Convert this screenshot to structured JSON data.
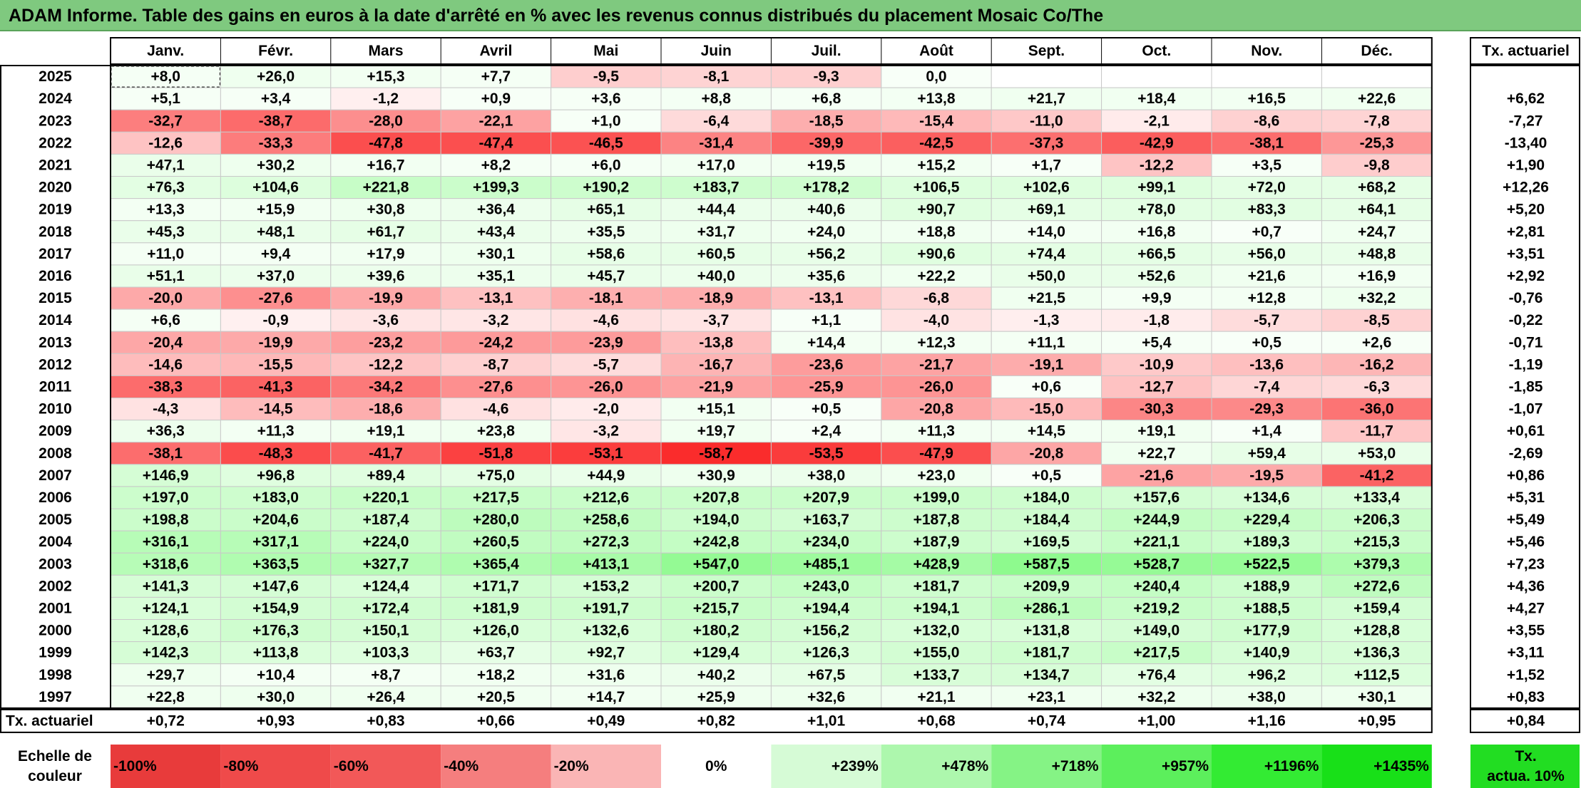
{
  "title": "ADAM Informe. Table des gains en euros à la date d'arrêté en % avec les revenus connus distribués du placement Mosaic Co/The",
  "chart_data": {
    "type": "heatmap",
    "columns": [
      "Janv.",
      "Févr.",
      "Mars",
      "Avril",
      "Mai",
      "Juin",
      "Juil.",
      "Août",
      "Sept.",
      "Oct.",
      "Nov.",
      "Déc."
    ],
    "rate_header": "Tx. actuariel",
    "rows": [
      {
        "year": "2025",
        "values": [
          "+8,0",
          "+26,0",
          "+15,3",
          "+7,7",
          "-9,5",
          "-8,1",
          "-9,3",
          "0,0",
          "",
          "",
          "",
          ""
        ],
        "rate": ""
      },
      {
        "year": "2024",
        "values": [
          "+5,1",
          "+3,4",
          "-1,2",
          "+0,9",
          "+3,6",
          "+8,8",
          "+6,8",
          "+13,8",
          "+21,7",
          "+18,4",
          "+16,5",
          "+22,6"
        ],
        "rate": "+6,62"
      },
      {
        "year": "2023",
        "values": [
          "-32,7",
          "-38,7",
          "-28,0",
          "-22,1",
          "+1,0",
          "-6,4",
          "-18,5",
          "-15,4",
          "-11,0",
          "-2,1",
          "-8,6",
          "-7,8"
        ],
        "rate": "-7,27"
      },
      {
        "year": "2022",
        "values": [
          "-12,6",
          "-33,3",
          "-47,8",
          "-47,4",
          "-46,5",
          "-31,4",
          "-39,9",
          "-42,5",
          "-37,3",
          "-42,9",
          "-38,1",
          "-25,3"
        ],
        "rate": "-13,40"
      },
      {
        "year": "2021",
        "values": [
          "+47,1",
          "+30,2",
          "+16,7",
          "+8,2",
          "+6,0",
          "+17,0",
          "+19,5",
          "+15,2",
          "+1,7",
          "-12,2",
          "+3,5",
          "-9,8"
        ],
        "rate": "+1,90"
      },
      {
        "year": "2020",
        "values": [
          "+76,3",
          "+104,6",
          "+221,8",
          "+199,3",
          "+190,2",
          "+183,7",
          "+178,2",
          "+106,5",
          "+102,6",
          "+99,1",
          "+72,0",
          "+68,2"
        ],
        "rate": "+12,26"
      },
      {
        "year": "2019",
        "values": [
          "+13,3",
          "+15,9",
          "+30,8",
          "+36,4",
          "+65,1",
          "+44,4",
          "+40,6",
          "+90,7",
          "+69,1",
          "+78,0",
          "+83,3",
          "+64,1"
        ],
        "rate": "+5,20"
      },
      {
        "year": "2018",
        "values": [
          "+45,3",
          "+48,1",
          "+61,7",
          "+43,4",
          "+35,5",
          "+31,7",
          "+24,0",
          "+18,8",
          "+14,0",
          "+16,8",
          "+0,7",
          "+24,7"
        ],
        "rate": "+2,81"
      },
      {
        "year": "2017",
        "values": [
          "+11,0",
          "+9,4",
          "+17,9",
          "+30,1",
          "+58,6",
          "+60,5",
          "+56,2",
          "+90,6",
          "+74,4",
          "+66,5",
          "+56,0",
          "+48,8"
        ],
        "rate": "+3,51"
      },
      {
        "year": "2016",
        "values": [
          "+51,1",
          "+37,0",
          "+39,6",
          "+35,1",
          "+45,7",
          "+40,0",
          "+35,6",
          "+22,2",
          "+50,0",
          "+52,6",
          "+21,6",
          "+16,9"
        ],
        "rate": "+2,92"
      },
      {
        "year": "2015",
        "values": [
          "-20,0",
          "-27,6",
          "-19,9",
          "-13,1",
          "-18,1",
          "-18,9",
          "-13,1",
          "-6,8",
          "+21,5",
          "+9,9",
          "+12,8",
          "+32,2"
        ],
        "rate": "-0,76"
      },
      {
        "year": "2014",
        "values": [
          "+6,6",
          "-0,9",
          "-3,6",
          "-3,2",
          "-4,6",
          "-3,7",
          "+1,1",
          "-4,0",
          "-1,3",
          "-1,8",
          "-5,7",
          "-8,5"
        ],
        "rate": "-0,22"
      },
      {
        "year": "2013",
        "values": [
          "-20,4",
          "-19,9",
          "-23,2",
          "-24,2",
          "-23,9",
          "-13,8",
          "+14,4",
          "+12,3",
          "+11,1",
          "+5,4",
          "+0,5",
          "+2,6"
        ],
        "rate": "-0,71"
      },
      {
        "year": "2012",
        "values": [
          "-14,6",
          "-15,5",
          "-12,2",
          "-8,7",
          "-5,7",
          "-16,7",
          "-23,6",
          "-21,7",
          "-19,1",
          "-10,9",
          "-13,6",
          "-16,2"
        ],
        "rate": "-1,19"
      },
      {
        "year": "2011",
        "values": [
          "-38,3",
          "-41,3",
          "-34,2",
          "-27,6",
          "-26,0",
          "-21,9",
          "-25,9",
          "-26,0",
          "+0,6",
          "-12,7",
          "-7,4",
          "-6,3"
        ],
        "rate": "-1,85"
      },
      {
        "year": "2010",
        "values": [
          "-4,3",
          "-14,5",
          "-18,6",
          "-4,6",
          "-2,0",
          "+15,1",
          "+0,5",
          "-20,8",
          "-15,0",
          "-30,3",
          "-29,3",
          "-36,0"
        ],
        "rate": "-1,07"
      },
      {
        "year": "2009",
        "values": [
          "+36,3",
          "+11,3",
          "+19,1",
          "+23,8",
          "-3,2",
          "+19,7",
          "+2,4",
          "+11,3",
          "+14,5",
          "+19,1",
          "+1,4",
          "-11,7"
        ],
        "rate": "+0,61"
      },
      {
        "year": "2008",
        "values": [
          "-38,1",
          "-48,3",
          "-41,7",
          "-51,8",
          "-53,1",
          "-58,7",
          "-53,5",
          "-47,9",
          "-20,8",
          "+22,7",
          "+59,4",
          "+53,0"
        ],
        "rate": "-2,69"
      },
      {
        "year": "2007",
        "values": [
          "+146,9",
          "+96,8",
          "+89,4",
          "+75,0",
          "+44,9",
          "+30,9",
          "+38,0",
          "+23,0",
          "+0,5",
          "-21,6",
          "-19,5",
          "-41,2"
        ],
        "rate": "+0,86"
      },
      {
        "year": "2006",
        "values": [
          "+197,0",
          "+183,0",
          "+220,1",
          "+217,5",
          "+212,6",
          "+207,8",
          "+207,9",
          "+199,0",
          "+184,0",
          "+157,6",
          "+134,6",
          "+133,4"
        ],
        "rate": "+5,31"
      },
      {
        "year": "2005",
        "values": [
          "+198,8",
          "+204,6",
          "+187,4",
          "+280,0",
          "+258,6",
          "+194,0",
          "+163,7",
          "+187,8",
          "+184,4",
          "+244,9",
          "+229,4",
          "+206,3"
        ],
        "rate": "+5,49"
      },
      {
        "year": "2004",
        "values": [
          "+316,1",
          "+317,1",
          "+224,0",
          "+260,5",
          "+272,3",
          "+242,8",
          "+234,0",
          "+187,9",
          "+169,5",
          "+221,1",
          "+189,3",
          "+215,3"
        ],
        "rate": "+5,46"
      },
      {
        "year": "2003",
        "values": [
          "+318,6",
          "+363,5",
          "+327,7",
          "+365,4",
          "+413,1",
          "+547,0",
          "+485,1",
          "+428,9",
          "+587,5",
          "+528,7",
          "+522,5",
          "+379,3"
        ],
        "rate": "+7,23"
      },
      {
        "year": "2002",
        "values": [
          "+141,3",
          "+147,6",
          "+124,4",
          "+171,7",
          "+153,2",
          "+200,7",
          "+243,0",
          "+181,7",
          "+209,9",
          "+240,4",
          "+188,9",
          "+272,6"
        ],
        "rate": "+4,36"
      },
      {
        "year": "2001",
        "values": [
          "+124,1",
          "+154,9",
          "+172,4",
          "+181,9",
          "+191,7",
          "+215,7",
          "+194,4",
          "+194,1",
          "+286,1",
          "+219,2",
          "+188,5",
          "+159,4"
        ],
        "rate": "+4,27"
      },
      {
        "year": "2000",
        "values": [
          "+128,6",
          "+176,3",
          "+150,1",
          "+126,0",
          "+132,6",
          "+180,2",
          "+156,2",
          "+132,0",
          "+131,8",
          "+149,0",
          "+177,9",
          "+128,8"
        ],
        "rate": "+3,55"
      },
      {
        "year": "1999",
        "values": [
          "+142,3",
          "+113,8",
          "+103,3",
          "+63,7",
          "+92,7",
          "+129,4",
          "+126,3",
          "+155,0",
          "+181,7",
          "+217,5",
          "+140,9",
          "+136,3"
        ],
        "rate": "+3,11"
      },
      {
        "year": "1998",
        "values": [
          "+29,7",
          "+10,4",
          "+8,7",
          "+18,2",
          "+31,6",
          "+40,2",
          "+67,5",
          "+133,7",
          "+134,7",
          "+76,4",
          "+96,2",
          "+112,5"
        ],
        "rate": "+1,52"
      },
      {
        "year": "1997",
        "values": [
          "+22,8",
          "+30,0",
          "+26,4",
          "+20,5",
          "+14,7",
          "+25,9",
          "+32,6",
          "+21,1",
          "+23,1",
          "+32,2",
          "+38,0",
          "+30,1"
        ],
        "rate": "+0,83"
      }
    ],
    "footer": {
      "label": "Tx. actuariel",
      "values": [
        "+0,72",
        "+0,93",
        "+0,83",
        "+0,66",
        "+0,49",
        "+0,82",
        "+1,01",
        "+0,68",
        "+0,74",
        "+1,00",
        "+1,16",
        "+0,95"
      ],
      "rate": "+0,84"
    },
    "legend": {
      "label_line1": "Echelle de",
      "label_line2": "couleur",
      "items": [
        "-100%",
        "-80%",
        "-60%",
        "-40%",
        "-20%",
        "0%",
        "+239%",
        "+478%",
        "+718%",
        "+957%",
        "+1196%",
        "+1435%"
      ],
      "colors": [
        "#e83b3b",
        "#ef4a4a",
        "#f25858",
        "#f57e7e",
        "#fab5b5",
        "#ffffff",
        "#d6fbd6",
        "#adf7ad",
        "#85f385",
        "#5cef5c",
        "#33eb33",
        "#18e018"
      ],
      "rate_line1": "Tx.",
      "rate_line2": "actua. 10%",
      "rate_color": "#22dd22"
    }
  }
}
